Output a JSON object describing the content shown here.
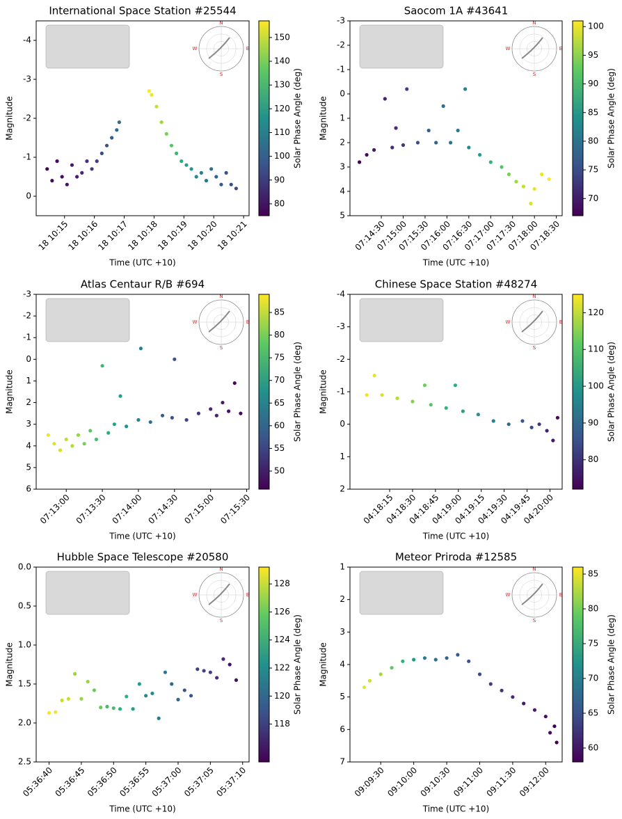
{
  "chart_data": [
    {
      "type": "scatter",
      "title": "International Space Station #25544",
      "x_label": "Time (UTC +10)",
      "y_label": "Magnitude",
      "colorbar_label": "Solar Phase Angle (deg)",
      "colormap": "viridis",
      "inset_labels": [
        "N",
        "E",
        "S",
        "W"
      ],
      "xlim": [
        "10:14:03",
        "10:21:11"
      ],
      "ylim": [
        0.5,
        -4.5
      ],
      "clim": [
        75,
        157
      ],
      "xticks": [
        {
          "value": "10:15:00",
          "label": "18 10:15"
        },
        {
          "value": "10:16:00",
          "label": "18 10:16"
        },
        {
          "value": "10:17:00",
          "label": "18 10:17"
        },
        {
          "value": "10:18:00",
          "label": "18 10:18"
        },
        {
          "value": "10:19:00",
          "label": "18 10:19"
        },
        {
          "value": "10:20:00",
          "label": "18 10:20"
        },
        {
          "value": "10:21:00",
          "label": "18 10:21"
        }
      ],
      "yticks": [
        -4,
        -3,
        -2,
        -1,
        0
      ],
      "cticks": [
        80,
        90,
        100,
        110,
        120,
        130,
        140,
        150
      ],
      "x": [
        "10:14:25",
        "10:14:35",
        "10:14:45",
        "10:14:55",
        "10:15:05",
        "10:15:15",
        "10:15:25",
        "10:15:35",
        "10:15:45",
        "10:15:55",
        "10:16:05",
        "10:16:15",
        "10:16:25",
        "10:16:35",
        "10:16:45",
        "10:16:50",
        "10:17:50",
        "10:17:55",
        "10:18:05",
        "10:18:15",
        "10:18:25",
        "10:18:35",
        "10:18:45",
        "10:18:55",
        "10:19:05",
        "10:19:15",
        "10:19:25",
        "10:19:35",
        "10:19:45",
        "10:19:55",
        "10:20:05",
        "10:20:15",
        "10:20:25",
        "10:20:35",
        "10:20:45"
      ],
      "values": [
        -0.7,
        -0.4,
        -0.9,
        -0.5,
        -0.3,
        -0.8,
        -0.5,
        -0.6,
        -0.9,
        -0.7,
        -0.9,
        -1.1,
        -1.3,
        -1.5,
        -1.7,
        -1.9,
        -2.7,
        -2.6,
        -2.3,
        -1.9,
        -1.6,
        -1.3,
        -1.1,
        -0.9,
        -0.8,
        -0.7,
        -0.5,
        -0.6,
        -0.4,
        -0.7,
        -0.5,
        -0.3,
        -0.6,
        -0.3,
        -0.2
      ],
      "c": [
        76,
        77,
        77,
        78,
        79,
        80,
        82,
        84,
        86,
        88,
        90,
        93,
        96,
        99,
        102,
        104,
        157,
        155,
        150,
        145,
        140,
        135,
        130,
        126,
        122,
        118,
        114,
        110,
        107,
        104,
        101,
        98,
        96,
        94,
        93
      ]
    },
    {
      "type": "scatter",
      "title": "Saocom 1A #43641",
      "x_label": "Time (UTC +10)",
      "y_label": "Magnitude",
      "colorbar_label": "Solar Phase Angle (deg)",
      "colormap": "viridis",
      "inset_labels": [
        "N",
        "E",
        "S",
        "W"
      ],
      "xlim": [
        "07:13:47",
        "07:18:38"
      ],
      "ylim": [
        5,
        -3
      ],
      "clim": [
        67,
        101
      ],
      "xticks": [
        "07:14:30",
        "07:15:00",
        "07:15:30",
        "07:16:00",
        "07:16:30",
        "07:17:00",
        "07:17:30",
        "07:18:00",
        "07:18:30"
      ],
      "yticks": [
        -3,
        -2,
        -1,
        0,
        1,
        2,
        3,
        4,
        5
      ],
      "cticks": [
        70,
        75,
        80,
        85,
        90,
        95,
        100
      ],
      "x": [
        "07:14:00",
        "07:14:10",
        "07:14:20",
        "07:14:35",
        "07:14:45",
        "07:14:50",
        "07:15:00",
        "07:15:05",
        "07:15:20",
        "07:15:35",
        "07:15:45",
        "07:15:55",
        "07:16:05",
        "07:16:15",
        "07:16:25",
        "07:16:30",
        "07:16:45",
        "07:17:00",
        "07:17:15",
        "07:17:25",
        "07:17:35",
        "07:17:45",
        "07:17:55",
        "07:18:00",
        "07:18:10",
        "07:18:20"
      ],
      "values": [
        2.8,
        2.5,
        2.3,
        0.2,
        2.2,
        1.4,
        2.1,
        -0.2,
        2.0,
        1.5,
        2.0,
        0.5,
        2.0,
        1.5,
        -0.2,
        2.2,
        2.5,
        2.8,
        3.0,
        3.3,
        3.6,
        3.8,
        4.5,
        3.9,
        3.3,
        3.5
      ],
      "c": [
        67,
        68,
        69,
        70,
        71,
        71,
        72,
        73,
        75,
        77,
        78,
        79,
        80,
        81,
        82,
        83,
        86,
        89,
        92,
        94,
        96,
        98,
        99,
        100,
        100,
        101
      ]
    },
    {
      "type": "scatter",
      "title": "Atlas Centaur R/B #694",
      "x_label": "Time (UTC +10)",
      "y_label": "Magnitude",
      "colorbar_label": "Solar Phase Angle (deg)",
      "colormap": "viridis",
      "inset_labels": [
        "N",
        "E",
        "S",
        "W"
      ],
      "xlim": [
        "07:12:35",
        "07:15:32"
      ],
      "ylim": [
        6,
        -3
      ],
      "clim": [
        46,
        89
      ],
      "xticks": [
        "07:13:00",
        "07:13:30",
        "07:14:00",
        "07:14:30",
        "07:15:00",
        "07:15:30"
      ],
      "yticks": [
        -3,
        -2,
        -1,
        0,
        1,
        2,
        3,
        4,
        5,
        6
      ],
      "cticks": [
        50,
        55,
        60,
        65,
        70,
        75,
        80,
        85
      ],
      "x": [
        "07:12:45",
        "07:12:50",
        "07:12:55",
        "07:13:00",
        "07:13:05",
        "07:13:10",
        "07:13:15",
        "07:13:20",
        "07:13:25",
        "07:13:30",
        "07:13:35",
        "07:13:40",
        "07:13:45",
        "07:13:50",
        "07:14:00",
        "07:14:02",
        "07:14:10",
        "07:14:20",
        "07:14:28",
        "07:14:30",
        "07:14:40",
        "07:14:50",
        "07:15:00",
        "07:15:05",
        "07:15:10",
        "07:15:15",
        "07:15:20",
        "07:15:25"
      ],
      "values": [
        3.5,
        3.9,
        4.2,
        3.7,
        4.0,
        3.5,
        3.9,
        3.3,
        3.7,
        0.3,
        3.4,
        3.0,
        1.7,
        3.1,
        2.8,
        -0.5,
        2.9,
        2.6,
        2.7,
        0.0,
        2.8,
        2.5,
        2.3,
        2.6,
        2.0,
        2.4,
        1.1,
        2.5
      ],
      "c": [
        88,
        87,
        86,
        85,
        84,
        82,
        80,
        78,
        76,
        75,
        73,
        71,
        70,
        68,
        65,
        65,
        62,
        59,
        57,
        57,
        55,
        53,
        51,
        50,
        49,
        48,
        47,
        47
      ]
    },
    {
      "type": "scatter",
      "title": "Chinese Space Station #48274",
      "x_label": "Time (UTC +10)",
      "y_label": "Magnitude",
      "colorbar_label": "Solar Phase Angle (deg)",
      "colormap": "viridis",
      "inset_labels": [
        "N",
        "E",
        "S",
        "W"
      ],
      "xlim": [
        "04:17:49",
        "04:20:08"
      ],
      "ylim": [
        2,
        -4
      ],
      "clim": [
        72,
        125
      ],
      "xticks": [
        "04:18:15",
        "04:18:30",
        "04:18:45",
        "04:19:00",
        "04:19:15",
        "04:19:30",
        "04:19:45",
        "04:20:00"
      ],
      "yticks": [
        -4,
        -3,
        -2,
        -1,
        0,
        1,
        2
      ],
      "cticks": [
        80,
        90,
        100,
        110,
        120
      ],
      "x": [
        "04:18:00",
        "04:18:05",
        "04:18:10",
        "04:18:20",
        "04:18:30",
        "04:18:38",
        "04:18:42",
        "04:18:52",
        "04:18:58",
        "04:19:03",
        "04:19:13",
        "04:19:23",
        "04:19:33",
        "04:19:42",
        "04:19:48",
        "04:19:53",
        "04:19:58",
        "04:20:02",
        "04:20:05"
      ],
      "values": [
        -0.9,
        -1.5,
        -0.9,
        -0.8,
        -0.7,
        -1.2,
        -0.6,
        -0.5,
        -1.2,
        -0.4,
        -0.3,
        -0.1,
        0.0,
        -0.1,
        0.1,
        0.0,
        0.2,
        0.5,
        -0.2
      ],
      "c": [
        124,
        123,
        122,
        119,
        115,
        113,
        111,
        107,
        105,
        103,
        99,
        95,
        90,
        86,
        83,
        80,
        77,
        75,
        73
      ]
    },
    {
      "type": "scatter",
      "title": "Hubble Space Telescope #20580",
      "x_label": "Time (UTC +10)",
      "y_label": "Magnitude",
      "colorbar_label": "Solar Phase Angle (deg)",
      "colormap": "viridis",
      "inset_labels": [
        "N",
        "E",
        "S",
        "W"
      ],
      "xlim": [
        "05:36:38",
        "05:37:11"
      ],
      "ylim": [
        2.5,
        0
      ],
      "clim": [
        115.3,
        129.2
      ],
      "xticks": [
        "05:36:40",
        "05:36:45",
        "05:36:50",
        "05:36:55",
        "05:37:00",
        "05:37:05",
        "05:37:10"
      ],
      "yticks": [
        {
          "value": 0,
          "label": "0.0"
        },
        0.5,
        {
          "value": 1,
          "label": "1.0"
        },
        1.5,
        {
          "value": 2,
          "label": "2.0"
        },
        2.5
      ],
      "cticks": [
        118,
        120,
        122,
        124,
        126,
        128
      ],
      "x": [
        "05:36:40",
        "05:36:41",
        "05:36:42",
        "05:36:43",
        "05:36:44",
        "05:36:45",
        "05:36:46",
        "05:36:47",
        "05:36:48",
        "05:36:49",
        "05:36:50",
        "05:36:51",
        "05:36:52",
        "05:36:53",
        "05:36:54",
        "05:36:55",
        "05:36:56",
        "05:36:57",
        "05:36:58",
        "05:36:59",
        "05:37:00",
        "05:37:01",
        "05:37:02",
        "05:37:03",
        "05:37:04",
        "05:37:05",
        "05:37:06",
        "05:37:07",
        "05:37:08",
        "05:37:09"
      ],
      "values": [
        1.87,
        1.86,
        1.71,
        1.69,
        1.37,
        1.69,
        1.47,
        1.58,
        1.8,
        1.79,
        1.81,
        1.82,
        1.66,
        1.82,
        1.5,
        1.65,
        1.62,
        1.94,
        1.35,
        1.5,
        1.7,
        1.58,
        1.65,
        1.31,
        1.33,
        1.35,
        1.42,
        1.18,
        1.25,
        1.45
      ],
      "c": [
        129,
        129,
        128,
        128,
        127,
        127,
        127,
        126,
        126,
        125,
        125,
        124,
        124,
        123,
        123,
        122,
        122,
        121,
        121,
        120,
        120,
        119,
        119,
        118,
        118,
        118,
        117,
        117,
        116,
        116
      ]
    },
    {
      "type": "scatter",
      "title": "Meteor Priroda #12585",
      "x_label": "Time (UTC +10)",
      "y_label": "Magnitude",
      "colorbar_label": "Solar Phase Angle (deg)",
      "colormap": "viridis",
      "inset_labels": [
        "N",
        "E",
        "S",
        "W"
      ],
      "xlim": [
        "09:09:02",
        "09:12:15"
      ],
      "ylim": [
        7,
        1
      ],
      "clim": [
        58,
        86
      ],
      "xticks": [
        "09:09:30",
        "09:10:00",
        "09:10:30",
        "09:11:00",
        "09:11:30",
        "09:12:00"
      ],
      "yticks": [
        1,
        2,
        3,
        4,
        5,
        6,
        7
      ],
      "cticks": [
        60,
        65,
        70,
        75,
        80,
        85
      ],
      "x": [
        "09:09:15",
        "09:09:20",
        "09:09:30",
        "09:09:40",
        "09:09:50",
        "09:10:00",
        "09:10:10",
        "09:10:20",
        "09:10:30",
        "09:10:40",
        "09:10:50",
        "09:11:00",
        "09:11:10",
        "09:11:20",
        "09:11:30",
        "09:11:40",
        "09:11:50",
        "09:12:00",
        "09:12:04",
        "09:12:08",
        "09:12:10"
      ],
      "values": [
        4.7,
        4.5,
        4.3,
        4.1,
        3.9,
        3.85,
        3.8,
        3.85,
        3.8,
        3.7,
        3.9,
        4.3,
        4.6,
        4.8,
        5.0,
        5.2,
        5.4,
        5.6,
        6.1,
        5.9,
        6.4
      ],
      "c": [
        85,
        84,
        82,
        79,
        76,
        73,
        70,
        68,
        67,
        66,
        65,
        64,
        63,
        62,
        61,
        60,
        60,
        59,
        59,
        58,
        58
      ]
    }
  ]
}
